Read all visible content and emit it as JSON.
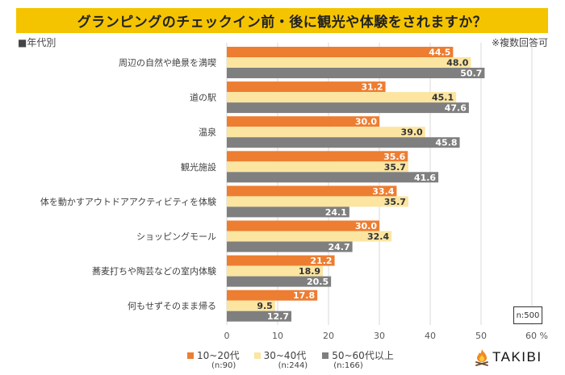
{
  "header": {
    "title": "グランピングのチェックイン前・後に観光や体験をされますか？",
    "subgroup": "■年代別",
    "note": "※複数回答可"
  },
  "sample_box": "n:500",
  "brand": {
    "name": "TAKIBI",
    "icon": "campfire-icon"
  },
  "colors": {
    "title_bg": "#F5C400",
    "series1": "#ED7D31",
    "series2": "#FBE5A1",
    "series3": "#7F7F7F",
    "grid": "#D9D9D9"
  },
  "legend": [
    {
      "label": "10~20代",
      "n": "(n:90)"
    },
    {
      "label": "30~40代",
      "n": "(n:244)"
    },
    {
      "label": "50~60代以上",
      "n": "(n:166)"
    }
  ],
  "chart_data": {
    "type": "bar",
    "orientation": "horizontal",
    "title": "グランピングのチェックイン前・後に観光や体験をされますか？",
    "xlabel": "%",
    "ylabel": "",
    "xlim": [
      0,
      60
    ],
    "xticks": [
      0,
      10,
      20,
      30,
      40,
      50,
      60
    ],
    "xtick_labels": [
      "0",
      "10",
      "20",
      "30",
      "40",
      "50",
      "60 %"
    ],
    "grid": true,
    "legend_position": "bottom-left",
    "categories": [
      "周辺の自然や絶景を満喫",
      "道の駅",
      "温泉",
      "観光施設",
      "体を動かすアウトドアアクティビティを体験",
      "ショッピングモール",
      "蕎麦打ちや陶芸などの室内体験",
      "何もせずそのまま帰る"
    ],
    "series": [
      {
        "name": "10~20代",
        "n": 90,
        "values": [
          44.5,
          31.2,
          30.0,
          35.6,
          33.4,
          30.0,
          21.2,
          17.8
        ]
      },
      {
        "name": "30~40代",
        "n": 244,
        "values": [
          48.0,
          45.1,
          39.0,
          35.7,
          35.7,
          32.4,
          18.9,
          9.5
        ]
      },
      {
        "name": "50~60代以上",
        "n": 166,
        "values": [
          50.7,
          47.6,
          45.8,
          41.6,
          24.1,
          24.7,
          20.5,
          12.7
        ]
      }
    ]
  }
}
